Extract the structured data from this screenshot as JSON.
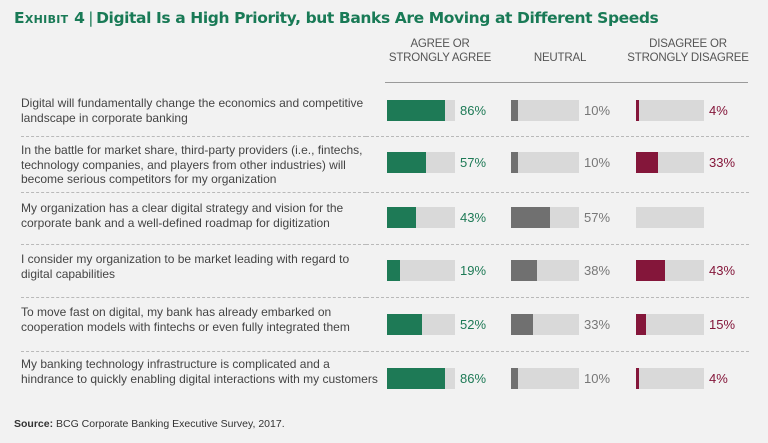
{
  "title": {
    "exhibit": "Exhibit 4",
    "separator": "|",
    "text": "Digital Is a High Priority, but Banks Are Moving at Different Speeds"
  },
  "columns": {
    "agree": "AGREE OR\nSTRONGLY AGREE",
    "neutral": "NEUTRAL",
    "disagree": "DISAGREE OR\nSTRONGLY DISAGREE"
  },
  "colors": {
    "title": "#197a56",
    "agree": "#1e7a56",
    "neutral": "#707070",
    "disagree": "#84163a",
    "track": "#d9d9d9"
  },
  "source": {
    "label": "Source:",
    "text": "BCG Corporate Banking Executive Survey, 2017."
  },
  "chart_data": {
    "type": "bar",
    "title": "Digital Is a High Priority, but Banks Are Moving at Different Speeds",
    "xlabel": "",
    "ylabel": "",
    "ylim": [
      0,
      100
    ],
    "categories": [
      "Digital will fundamentally change the economics and competitive landscape in corporate banking",
      "In the battle for market share, third-party providers (i.e., fintechs, technology companies, and players from other industries) will become serious competitors for my organization",
      "My organization has a clear digital strategy and vision for the corporate bank and a well-defined roadmap for digitization",
      "I consider my organization to be market leading with regard to digital capabilities",
      "To move fast on digital, my bank has already embarked on cooperation models with fintechs or even fully integrated them",
      "My banking technology infrastructure is complicated and a hindrance to quickly enabling digital interactions with my customers"
    ],
    "series": [
      {
        "name": "Agree or strongly agree",
        "key": "agree",
        "values": [
          86,
          57,
          43,
          19,
          52,
          86
        ],
        "labels": [
          "86%",
          "57%",
          "43%",
          "19%",
          "52%",
          "86%"
        ]
      },
      {
        "name": "Neutral",
        "key": "neutral",
        "values": [
          10,
          10,
          57,
          38,
          33,
          10
        ],
        "labels": [
          "10%",
          "10%",
          "57%",
          "38%",
          "33%",
          "10%"
        ]
      },
      {
        "name": "Disagree or strongly disagree",
        "key": "disagree",
        "values": [
          4,
          33,
          0,
          43,
          15,
          4
        ],
        "labels": [
          "4%",
          "33%",
          "",
          "43%",
          "15%",
          "4%"
        ]
      }
    ]
  }
}
